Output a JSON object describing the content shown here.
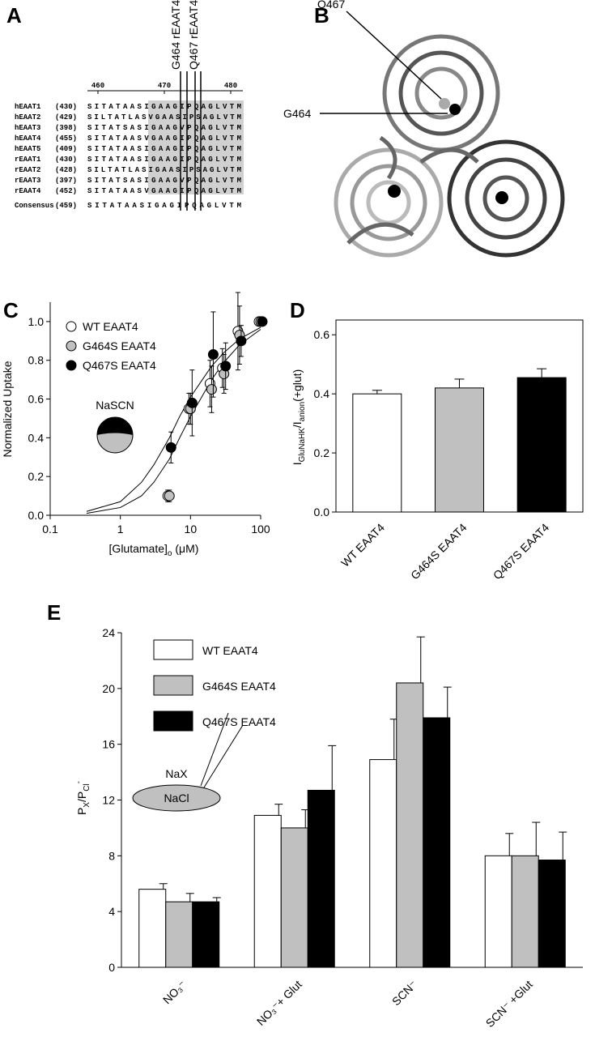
{
  "panel_labels": [
    "A",
    "B",
    "C",
    "D",
    "E"
  ],
  "alignment": {
    "ruler": [
      460,
      470,
      480
    ],
    "markers": [
      "G464 rEAAT4",
      "Q467 rEAAT4"
    ],
    "rows": [
      {
        "name": "hEAAT1",
        "start": "(430)",
        "sequence": "SITATAASIGAAGIPQAGLVTM"
      },
      {
        "name": "hEAAT2",
        "start": "(429)",
        "sequence": "SILTATLASVGAASIPSAGLVTM"
      },
      {
        "name": "hEAAT3",
        "start": "(398)",
        "sequence": "SITATSASIGAAGVPQAGLVTM"
      },
      {
        "name": "hEAAT4",
        "start": "(455)",
        "sequence": "SITATAASVGAAGIPQAGLVTM"
      },
      {
        "name": "hEAAT5",
        "start": "(409)",
        "sequence": "SITATAASIGAAGIPQAGLVTM"
      },
      {
        "name": "rEAAT1",
        "start": "(430)",
        "sequence": "SITATAASIGAAGIPQAGLVTM"
      },
      {
        "name": "rEAAT2",
        "start": "(428)",
        "sequence": "SILTATLASIGAASIPSAGLVTM"
      },
      {
        "name": "rEAAT3",
        "start": "(397)",
        "sequence": "SITATSASIGAAGVPQAGLVTM"
      },
      {
        "name": "rEAAT4",
        "start": "(452)",
        "sequence": "SITATAASVGAAGIPQAGLVTM"
      }
    ],
    "consensus": {
      "name": "Consensus",
      "start": "(459)",
      "sequence": "SITATAASIGAGIPQAGLVTM"
    }
  },
  "structure": {
    "labels": [
      "Q467",
      "G464"
    ]
  },
  "chart_data": [
    {
      "type": "scatter",
      "ylabel": "Normalized Uptake",
      "xlabel": [
        "[Glutamate]",
        "o",
        " (μM)"
      ],
      "xscale": "log",
      "xlim": [
        0.1,
        100
      ],
      "xticks": [
        0.1,
        1,
        10,
        100
      ],
      "ylim": [
        0,
        1.1
      ],
      "yticks": [
        {
          "value": 0,
          "label": "0.0"
        },
        {
          "value": 0.2,
          "label": "0.2"
        },
        {
          "value": 0.4,
          "label": "0.4"
        },
        {
          "value": 0.6,
          "label": "0.6"
        },
        {
          "value": 0.8,
          "label": "0.8"
        },
        {
          "value": 1,
          "label": "1.0"
        }
      ],
      "x": [
        5,
        10,
        20,
        30,
        50,
        100
      ],
      "series": [
        {
          "name": "WT EAAT4",
          "color": "#ffffff",
          "values": [
            0.1,
            0.55,
            0.68,
            0.76,
            0.95,
            1.0
          ],
          "errors": [
            0.03,
            0.08,
            0.12,
            0.1,
            0.2,
            0.02
          ]
        },
        {
          "name": "G464S EAAT4",
          "color": "#c0c0c0",
          "values": [
            0.1,
            0.55,
            0.65,
            0.73,
            0.93,
            1.0
          ],
          "errors": [
            0.03,
            0.08,
            0.12,
            0.1,
            0.15,
            0.02
          ]
        },
        {
          "name": "Q467S EAAT4",
          "color": "#000000",
          "values": [
            0.35,
            0.58,
            0.83,
            0.77,
            0.9,
            1.0
          ],
          "errors": [
            0.08,
            0.17,
            0.22,
            0.12,
            0.08,
            0.02
          ]
        }
      ],
      "fit_curves": [
        {
          "x": [
            0.33,
            1,
            2,
            3,
            5,
            7,
            10,
            20,
            30,
            50,
            100
          ],
          "values": [
            0.02,
            0.07,
            0.17,
            0.26,
            0.4,
            0.51,
            0.61,
            0.77,
            0.84,
            0.91,
            0.97
          ]
        },
        {
          "x": [
            0.33,
            1,
            2,
            3,
            5,
            7,
            10,
            20,
            30,
            50,
            100
          ],
          "values": [
            0.01,
            0.04,
            0.1,
            0.17,
            0.29,
            0.4,
            0.51,
            0.7,
            0.79,
            0.88,
            0.96
          ]
        }
      ],
      "annotation": "NaSCN"
    },
    {
      "type": "bar",
      "ylabel": [
        "I",
        "GluNaHK",
        "/I",
        "anion",
        "(+glut)"
      ],
      "categories": [
        "WT EAAT4",
        "G464S EAAT4",
        "Q467S EAAT4"
      ],
      "values": [
        0.4,
        0.42,
        0.455
      ],
      "errors": [
        0.012,
        0.03,
        0.03
      ],
      "colors": [
        "#ffffff",
        "#c0c0c0",
        "#000000"
      ],
      "ylim": [
        0,
        0.65
      ],
      "yticks": [
        {
          "value": 0,
          "label": "0.0"
        },
        {
          "value": 0.2,
          "label": "0.2"
        },
        {
          "value": 0.4,
          "label": "0.4"
        },
        {
          "value": 0.6,
          "label": "0.6"
        }
      ]
    },
    {
      "type": "grouped_bar",
      "ylabel": [
        "P",
        "X",
        "/P",
        "Cl",
        "-"
      ],
      "categories": [
        "NO₃⁻",
        "NO₃⁻+ Glut",
        "SCN⁻",
        "SCN⁻ +Glut"
      ],
      "ylim": [
        0,
        24
      ],
      "yticks": [
        0,
        4,
        8,
        12,
        16,
        20,
        24
      ],
      "series": [
        {
          "name": "WT EAAT4",
          "color": "#ffffff",
          "values": [
            5.6,
            10.9,
            14.9,
            8.0
          ],
          "errors": [
            0.4,
            0.8,
            2.9,
            1.6
          ]
        },
        {
          "name": "G464S EAAT4",
          "color": "#c0c0c0",
          "values": [
            4.7,
            10.0,
            20.4,
            8.0
          ],
          "errors": [
            0.6,
            1.3,
            3.3,
            2.4
          ]
        },
        {
          "name": "Q467S EAAT4",
          "color": "#000000",
          "values": [
            4.7,
            12.7,
            17.9,
            7.7
          ],
          "errors": [
            0.3,
            3.2,
            2.2,
            2.0
          ]
        }
      ],
      "annotations": [
        "NaX",
        "NaCl"
      ]
    }
  ]
}
